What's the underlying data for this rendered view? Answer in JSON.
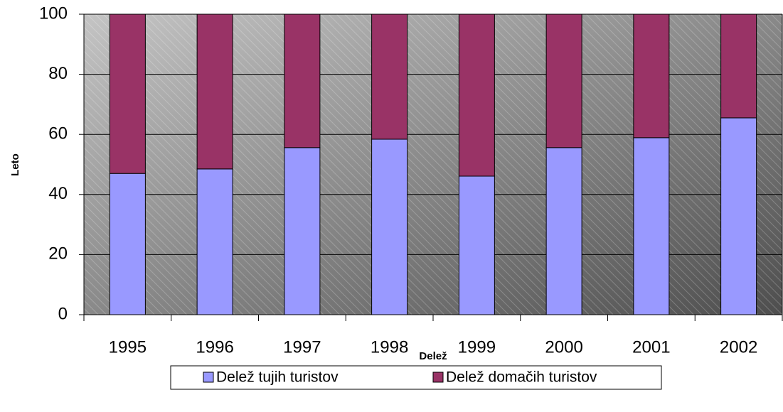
{
  "chart_data": {
    "type": "stacked_bar",
    "x_label": "Delež",
    "y_label": "Leto",
    "categories": [
      "1995",
      "1996",
      "1997",
      "1998",
      "1999",
      "2000",
      "2001",
      "2002"
    ],
    "series": [
      {
        "name": "Delež tujih turistov",
        "color": "#9999ff",
        "values": [
          47.0,
          48.5,
          55.6,
          58.4,
          46.1,
          55.6,
          58.9,
          65.5
        ]
      },
      {
        "name": "Delež domačih turistov",
        "color": "#993366",
        "values": [
          53.0,
          51.5,
          44.4,
          41.6,
          53.9,
          44.4,
          41.1,
          34.5
        ]
      }
    ],
    "ylim": [
      0,
      100
    ],
    "yticks": [
      0,
      20,
      40,
      60,
      80,
      100
    ],
    "grid": true
  }
}
